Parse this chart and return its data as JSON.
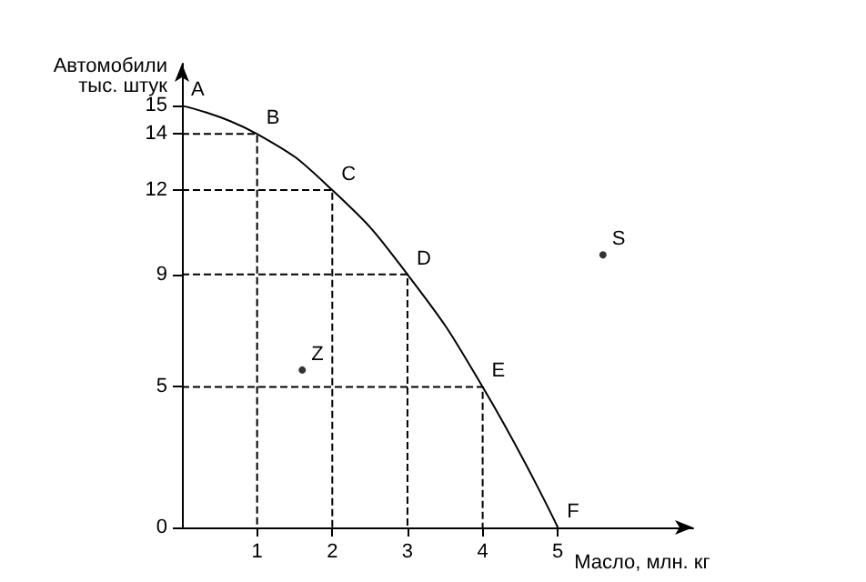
{
  "chart_data": {
    "type": "line",
    "xlabel": "Масло, млн. кг",
    "ylabel": "Автомобили\nтыс. штук",
    "xlim": [
      0,
      6.8
    ],
    "ylim": [
      0,
      16.5
    ],
    "xticks": [
      1,
      2,
      3,
      4,
      5
    ],
    "yticks": [
      0,
      5,
      9,
      12,
      14,
      15
    ],
    "grid": false,
    "series": [
      {
        "color": "#000000",
        "x": [
          0,
          1,
          2,
          3,
          4,
          5
        ],
        "values": [
          15,
          14,
          12,
          9,
          5,
          0
        ],
        "marker": "none",
        "line_style": "solid"
      },
      {
        "color": "#000000",
        "x": [
          0,
          1,
          1
        ],
        "values": [
          14,
          14,
          0
        ],
        "marker": "none",
        "line_style": "dashed"
      },
      {
        "color": "#000000",
        "x": [
          0,
          2,
          2
        ],
        "values": [
          12,
          12,
          0
        ],
        "marker": "none",
        "line_style": "dashed"
      },
      {
        "color": "#000000",
        "x": [
          0,
          3,
          3
        ],
        "values": [
          9,
          9,
          0
        ],
        "marker": "none",
        "line_style": "dashed"
      },
      {
        "color": "#000000",
        "x": [
          0,
          4,
          4
        ],
        "values": [
          5,
          5,
          0
        ],
        "marker": "none",
        "line_style": "dashed"
      },
      {
        "type": "scatter",
        "color": "#000000",
        "x": [
          1.6,
          5.6
        ],
        "values": [
          5.6,
          9.7
        ],
        "marker": "circle"
      }
    ],
    "annotations": [
      {
        "text": "A",
        "x": 0,
        "y": 15
      },
      {
        "text": "B",
        "x": 1,
        "y": 14
      },
      {
        "text": "C",
        "x": 2,
        "y": 12
      },
      {
        "text": "D",
        "x": 3,
        "y": 9
      },
      {
        "text": "E",
        "x": 4,
        "y": 5
      },
      {
        "text": "F",
        "x": 5,
        "y": 0
      },
      {
        "text": "Z",
        "x": 1.6,
        "y": 5.6
      },
      {
        "text": "S",
        "x": 5.6,
        "y": 9.7
      }
    ]
  }
}
